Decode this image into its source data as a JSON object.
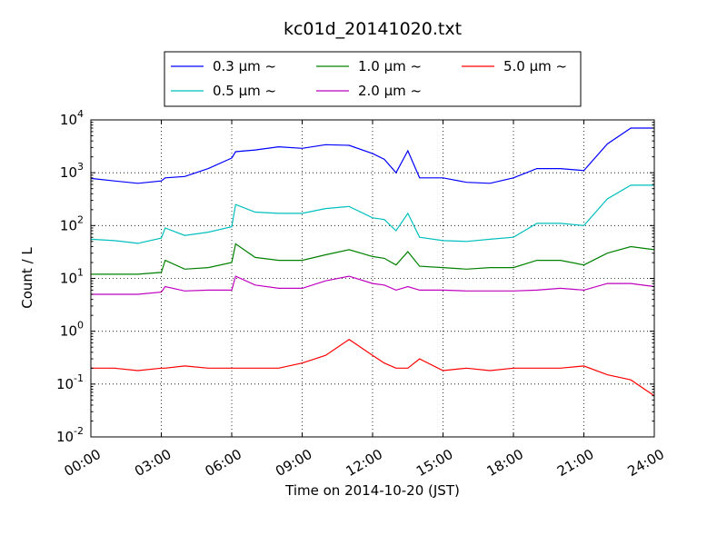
{
  "chart_data": {
    "type": "line",
    "title": "kc01d_20141020.txt",
    "xlabel": "Time on 2014-10-20 (JST)",
    "ylabel": "Count / L",
    "yscale": "log",
    "ylim": [
      0.01,
      10000
    ],
    "y_ticks": [
      {
        "base": "10",
        "exp": "-2",
        "value": 0.01
      },
      {
        "base": "10",
        "exp": "-1",
        "value": 0.1
      },
      {
        "base": "10",
        "exp": "0",
        "value": 1
      },
      {
        "base": "10",
        "exp": "1",
        "value": 10
      },
      {
        "base": "10",
        "exp": "2",
        "value": 100
      },
      {
        "base": "10",
        "exp": "3",
        "value": 1000
      },
      {
        "base": "10",
        "exp": "4",
        "value": 10000
      }
    ],
    "x_ticks": [
      "00:00",
      "03:00",
      "06:00",
      "09:00",
      "12:00",
      "15:00",
      "18:00",
      "21:00",
      "24:00"
    ],
    "grid": true,
    "legend_placement": "top-center",
    "x": [
      "00:00",
      "01:00",
      "02:00",
      "03:00",
      "03:10",
      "04:00",
      "05:00",
      "06:00",
      "06:10",
      "07:00",
      "08:00",
      "09:00",
      "10:00",
      "11:00",
      "12:00",
      "12:30",
      "13:00",
      "13:30",
      "14:00",
      "15:00",
      "16:00",
      "17:00",
      "18:00",
      "19:00",
      "20:00",
      "21:00",
      "22:00",
      "23:00",
      "24:00"
    ],
    "series": [
      {
        "name": "0.3 μm ~",
        "color": "#0000ff",
        "values": [
          780,
          700,
          630,
          700,
          800,
          850,
          1200,
          1900,
          2500,
          2700,
          3100,
          2900,
          3400,
          3300,
          2300,
          1800,
          1000,
          2600,
          800,
          800,
          660,
          630,
          800,
          1200,
          1200,
          1100,
          3500,
          7000,
          7000
        ]
      },
      {
        "name": "0.5 μm ~",
        "color": "#00bfbf",
        "values": [
          55,
          52,
          46,
          58,
          90,
          65,
          75,
          95,
          250,
          180,
          170,
          170,
          210,
          230,
          140,
          130,
          80,
          170,
          60,
          52,
          50,
          55,
          60,
          110,
          110,
          100,
          320,
          580,
          580
        ]
      },
      {
        "name": "1.0 μm ~",
        "color": "#008000",
        "values": [
          12,
          12,
          12,
          13,
          22,
          15,
          16,
          20,
          45,
          25,
          22,
          22,
          28,
          35,
          26,
          24,
          18,
          32,
          17,
          16,
          15,
          16,
          16,
          22,
          22,
          18,
          30,
          40,
          35
        ]
      },
      {
        "name": "2.0 μm ~",
        "color": "#bf00bf",
        "values": [
          5,
          5,
          5,
          5.5,
          7,
          5.8,
          6,
          6,
          11,
          7.5,
          6.5,
          6.5,
          9,
          11,
          8,
          7.5,
          6,
          7,
          6,
          6,
          5.8,
          5.8,
          5.8,
          6,
          6.5,
          6,
          8,
          8,
          7
        ]
      },
      {
        "name": "5.0 μm ~",
        "color": "#ff0000",
        "values": [
          0.2,
          0.2,
          0.18,
          0.2,
          0.2,
          0.22,
          0.2,
          0.2,
          0.2,
          0.2,
          0.2,
          0.25,
          0.35,
          0.7,
          0.35,
          0.25,
          0.2,
          0.2,
          0.3,
          0.18,
          0.2,
          0.18,
          0.2,
          0.2,
          0.2,
          0.22,
          0.15,
          0.12,
          0.06
        ]
      }
    ]
  }
}
